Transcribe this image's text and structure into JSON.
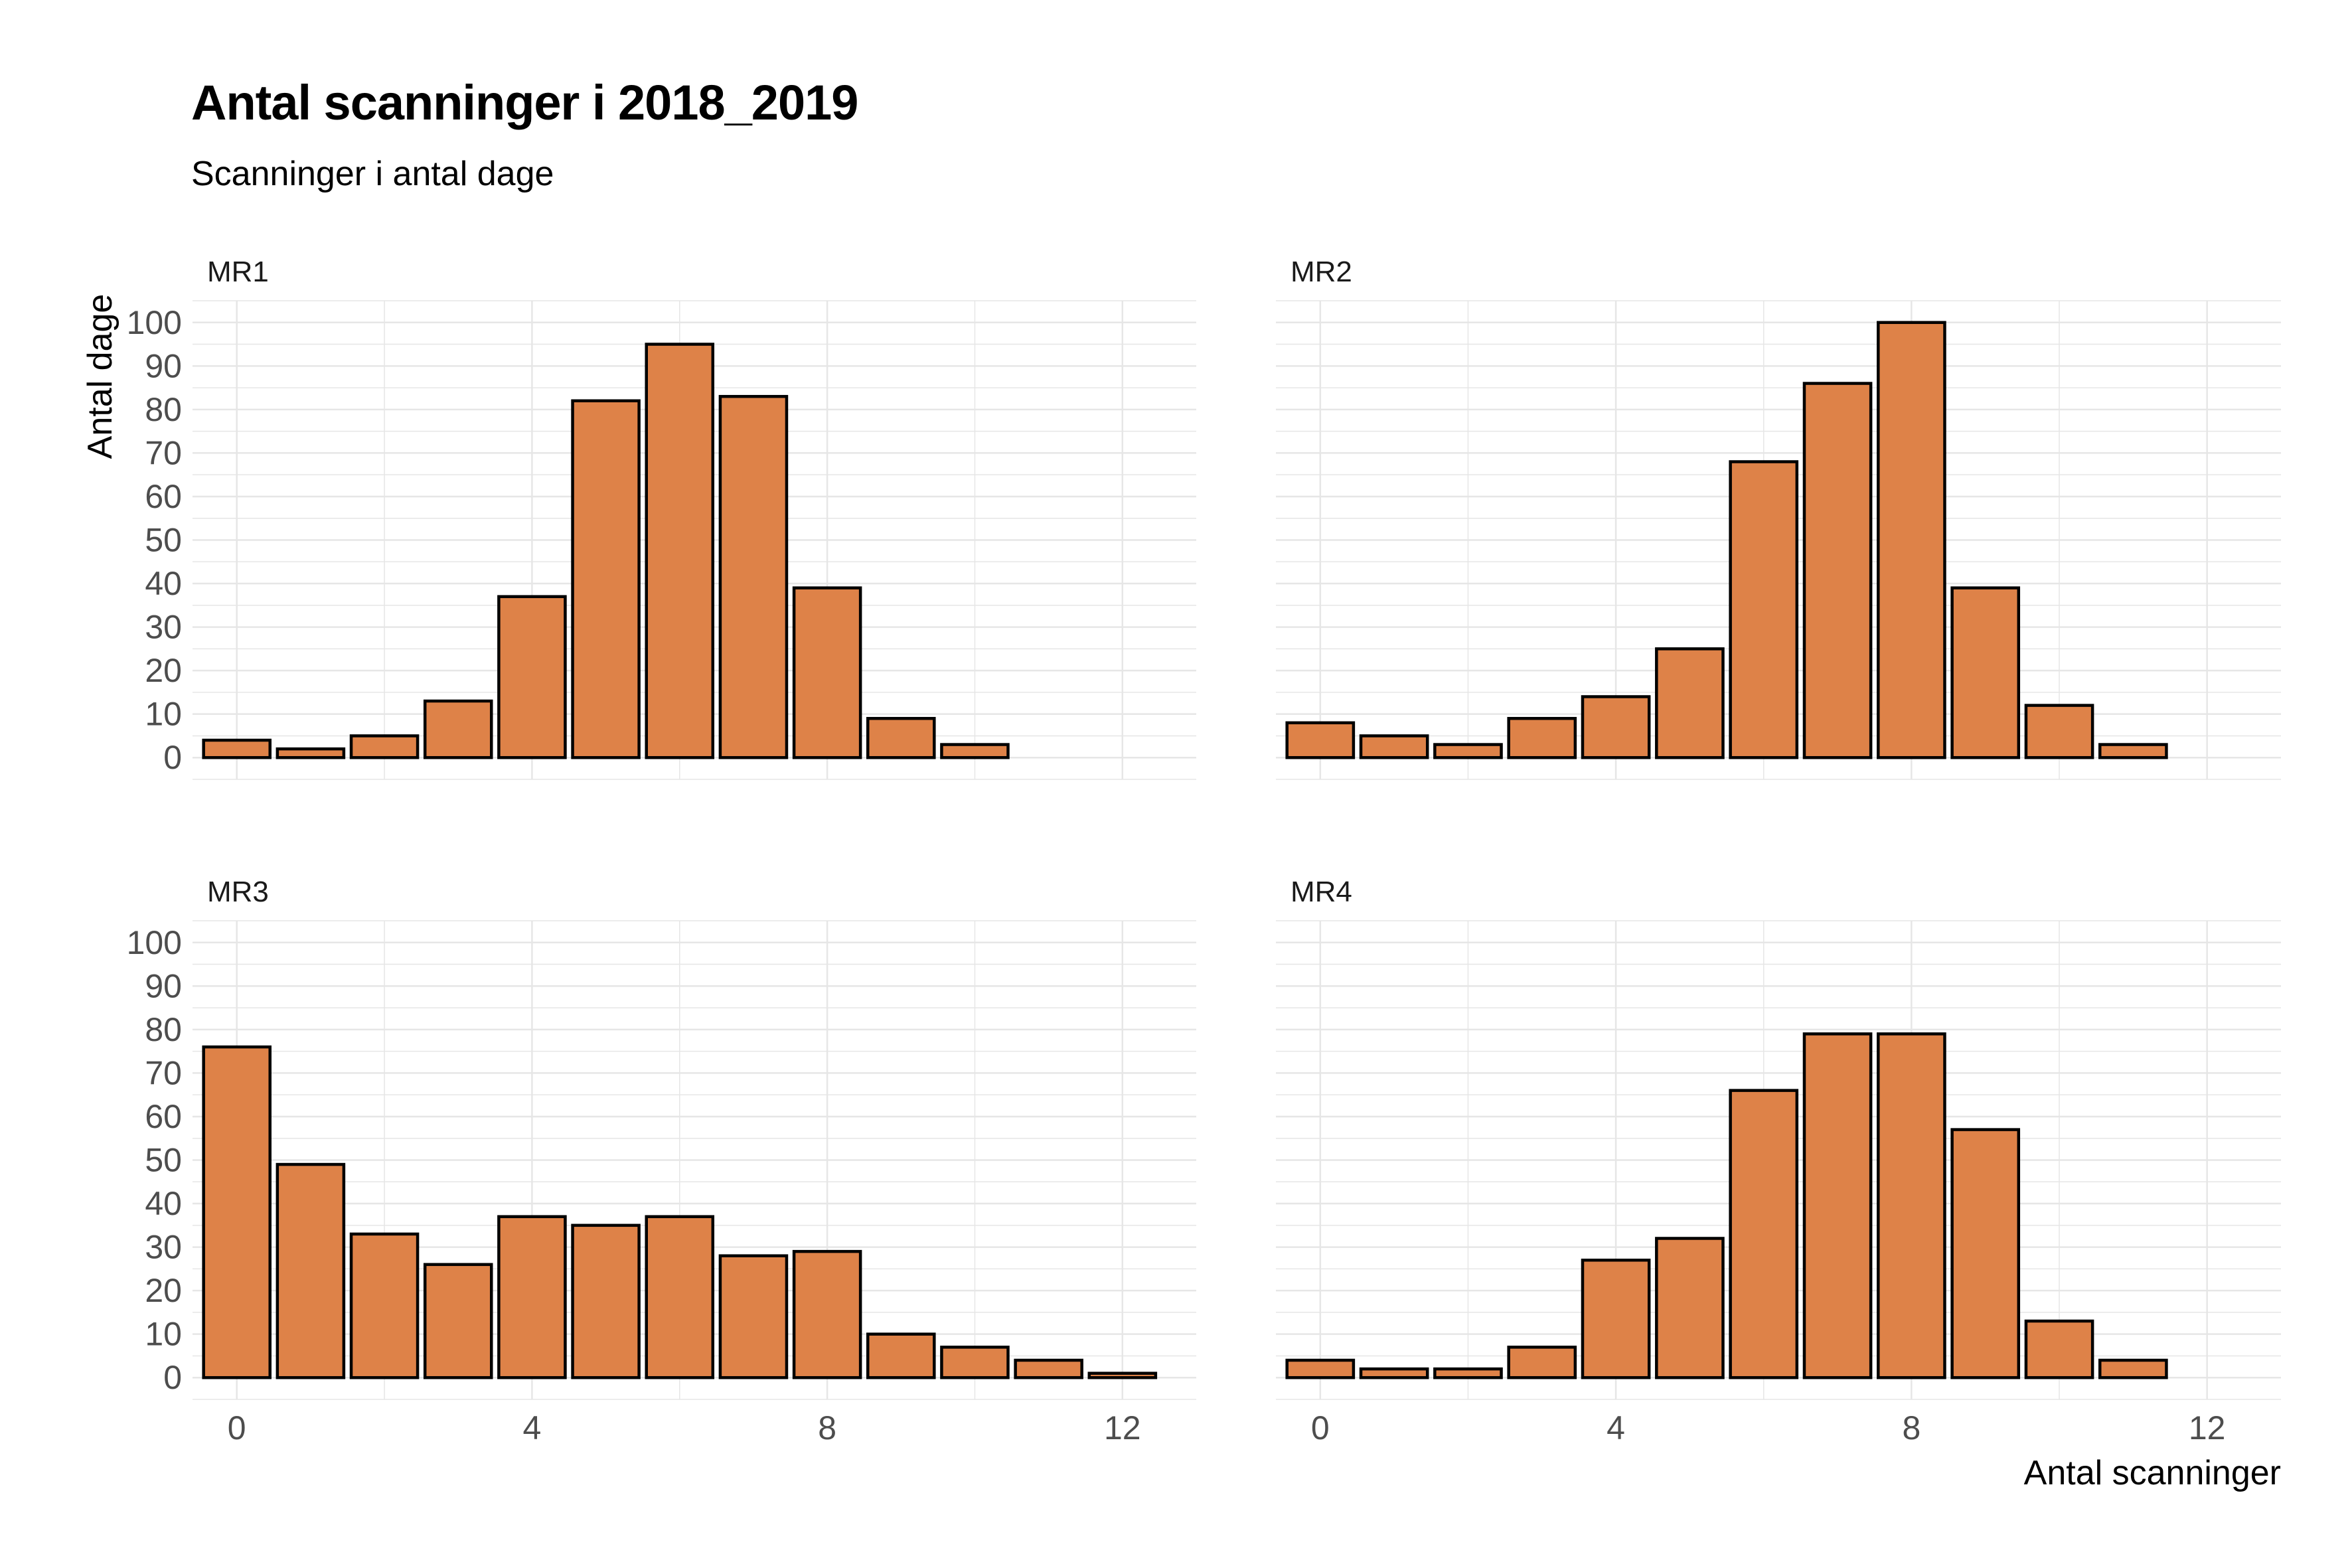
{
  "title": "Antal scanninger i 2018_2019",
  "subtitle": "Scanninger i antal dage",
  "colors": {
    "bar_fill": "#DE8248",
    "bar_stroke": "#000000",
    "grid": "#E6E6E6",
    "text": "#4D4D4D"
  },
  "chart_data": {
    "type": "bar",
    "xlabel": "Antal scanninger",
    "ylabel": "Antal dage",
    "xlim": [
      -0.6,
      13
    ],
    "ylim": [
      -5,
      105
    ],
    "x_ticks": [
      0,
      4,
      8,
      12
    ],
    "y_ticks": [
      0,
      10,
      20,
      30,
      40,
      50,
      60,
      70,
      80,
      90,
      100
    ],
    "grid": true,
    "panels": [
      {
        "name": "MR1",
        "x": [
          0,
          1,
          2,
          3,
          4,
          5,
          6,
          7,
          8,
          9,
          10
        ],
        "values": [
          4,
          2,
          5,
          13,
          37,
          82,
          95,
          83,
          39,
          9,
          3
        ]
      },
      {
        "name": "MR2",
        "x": [
          0,
          1,
          2,
          3,
          4,
          5,
          6,
          7,
          8,
          9,
          10,
          11
        ],
        "values": [
          8,
          5,
          3,
          9,
          14,
          25,
          68,
          86,
          100,
          39,
          12,
          3
        ]
      },
      {
        "name": "MR3",
        "x": [
          0,
          1,
          2,
          3,
          4,
          5,
          6,
          7,
          8,
          9,
          10,
          11,
          12
        ],
        "values": [
          76,
          49,
          33,
          26,
          37,
          35,
          37,
          28,
          29,
          10,
          7,
          4,
          1
        ]
      },
      {
        "name": "MR4",
        "x": [
          0,
          1,
          2,
          3,
          4,
          5,
          6,
          7,
          8,
          9,
          10,
          11
        ],
        "values": [
          4,
          2,
          2,
          7,
          27,
          32,
          66,
          79,
          79,
          57,
          13,
          4
        ]
      }
    ]
  }
}
